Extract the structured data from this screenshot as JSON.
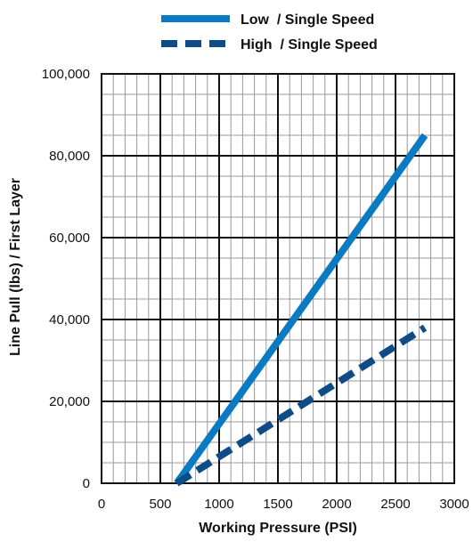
{
  "chart_data": {
    "type": "line",
    "xlabel": "Working Pressure (PSI)",
    "ylabel": "Line Pull (lbs) / First Layer",
    "xlim": [
      0,
      3000
    ],
    "ylim": [
      0,
      100000
    ],
    "x_ticks": [
      0,
      500,
      1000,
      1500,
      2000,
      2500,
      3000
    ],
    "x_tick_labels": [
      "0",
      "500",
      "1000",
      "1500",
      "2000",
      "2500",
      "3000"
    ],
    "y_ticks": [
      0,
      20000,
      40000,
      60000,
      80000,
      100000
    ],
    "y_tick_labels": [
      "0",
      "20,000",
      "40,000",
      "60,000",
      "80,000",
      "100,000"
    ],
    "grid": true,
    "minor_grid": true,
    "legend_position": "top",
    "series": [
      {
        "name": "Low  / Single Speed",
        "style": "solid",
        "color": "#0a7bc2",
        "x": [
          640,
          2750
        ],
        "y": [
          0,
          85000
        ]
      },
      {
        "name": "High  / Single Speed",
        "style": "dashed",
        "color": "#0d4c86",
        "x": [
          640,
          2750
        ],
        "y": [
          0,
          38000
        ]
      }
    ]
  }
}
